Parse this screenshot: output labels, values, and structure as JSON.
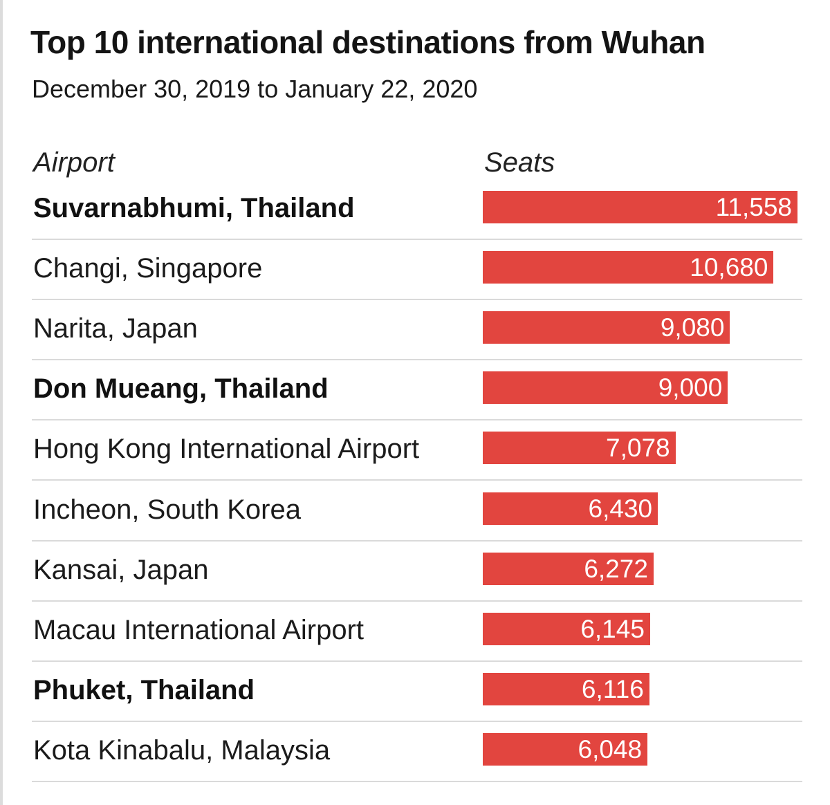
{
  "chart_data": {
    "type": "bar",
    "orientation": "horizontal",
    "title": "Top 10 international destinations from Wuhan",
    "subtitle": "December 30, 2019 to January 22, 2020",
    "category_header": "Airport",
    "value_header": "Seats",
    "bar_color": "#e2453f",
    "categories": [
      "Suvarnabhumi, Thailand",
      "Changi, Singapore",
      "Narita, Japan",
      "Don Mueang, Thailand",
      "Hong Kong International Airport",
      "Incheon, South Korea",
      "Kansai, Japan",
      "Macau International Airport",
      "Phuket, Thailand",
      "Kota Kinabalu, Malaysia"
    ],
    "values": [
      11558,
      10680,
      9080,
      9000,
      7078,
      6430,
      6272,
      6145,
      6116,
      6048
    ],
    "value_labels": [
      "11,558",
      "10,680",
      "9,080",
      "9,000",
      "7,078",
      "6,430",
      "6,272",
      "6,145",
      "6,116",
      "6,048"
    ],
    "emphasized": [
      true,
      false,
      false,
      true,
      false,
      false,
      false,
      false,
      true,
      false
    ]
  }
}
